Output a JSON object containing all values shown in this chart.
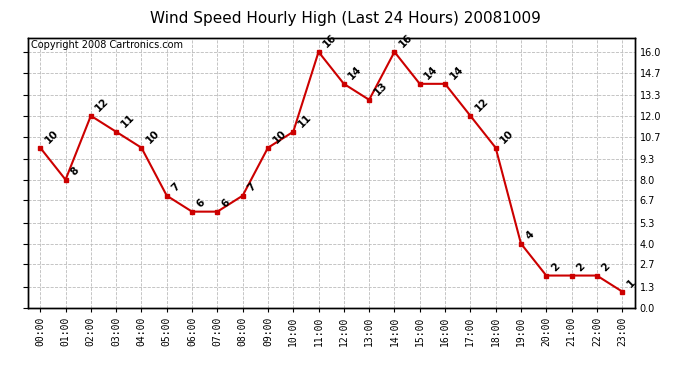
{
  "title": "Wind Speed Hourly High (Last 24 Hours) 20081009",
  "copyright": "Copyright 2008 Cartronics.com",
  "hours": [
    "00:00",
    "01:00",
    "02:00",
    "03:00",
    "04:00",
    "05:00",
    "06:00",
    "07:00",
    "08:00",
    "09:00",
    "10:00",
    "11:00",
    "12:00",
    "13:00",
    "14:00",
    "15:00",
    "16:00",
    "17:00",
    "18:00",
    "19:00",
    "20:00",
    "21:00",
    "22:00",
    "23:00"
  ],
  "values": [
    10,
    8,
    12,
    11,
    10,
    7,
    6,
    6,
    7,
    10,
    11,
    16,
    14,
    13,
    16,
    14,
    14,
    12,
    10,
    4,
    2,
    2,
    2,
    1
  ],
  "line_color": "#cc0000",
  "marker_color": "#cc0000",
  "bg_color": "#ffffff",
  "grid_color": "#bbbbbb",
  "yticks": [
    0.0,
    1.3,
    2.7,
    4.0,
    5.3,
    6.7,
    8.0,
    9.3,
    10.7,
    12.0,
    13.3,
    14.7,
    16.0
  ],
  "ylim": [
    0.0,
    16.9
  ],
  "title_fontsize": 11,
  "label_fontsize": 7,
  "copyright_fontsize": 7
}
